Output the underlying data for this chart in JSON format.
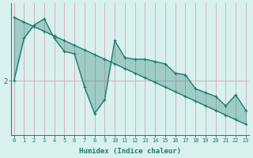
{
  "xlabel": "Humidex (Indice chaleur)",
  "x": [
    0,
    1,
    2,
    3,
    4,
    5,
    6,
    7,
    8,
    9,
    10,
    11,
    12,
    13,
    14,
    15,
    16,
    17,
    18,
    19,
    20,
    21,
    22,
    23
  ],
  "y_trend": [
    2.82,
    2.76,
    2.7,
    2.64,
    2.58,
    2.52,
    2.46,
    2.4,
    2.34,
    2.28,
    2.22,
    2.16,
    2.1,
    2.04,
    1.98,
    1.92,
    1.86,
    1.8,
    1.74,
    1.68,
    1.62,
    1.56,
    1.5,
    1.44
  ],
  "y_jagged": [
    2.0,
    2.55,
    2.72,
    2.8,
    2.55,
    2.38,
    2.35,
    1.92,
    1.58,
    1.76,
    2.52,
    2.3,
    2.28,
    2.28,
    2.25,
    2.22,
    2.1,
    2.08,
    1.9,
    1.85,
    1.8,
    1.68,
    1.82,
    1.62
  ],
  "line_color": "#1a7a6e",
  "fill_color": "#1a7a6e",
  "background_color": "#d8f0ee",
  "grid_color": "#d4a8b8",
  "axis_color": "#1a7a6e",
  "tick_color": "#1a7a6e",
  "ylim": [
    1.3,
    3.0
  ],
  "ytick_val": 2.0,
  "xlim": [
    -0.3,
    23.3
  ]
}
